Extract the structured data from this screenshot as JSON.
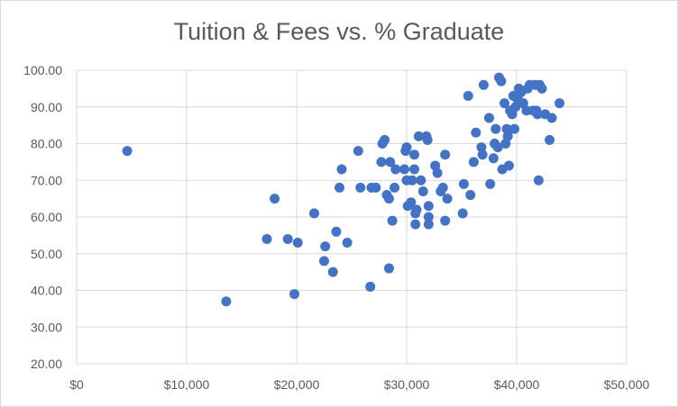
{
  "chart_data": {
    "type": "scatter",
    "title": "Tuition & Fees vs. % Graduate",
    "xlabel": "",
    "ylabel": "",
    "xlim": [
      0,
      50000
    ],
    "ylim": [
      20,
      100
    ],
    "x_ticks": [
      0,
      10000,
      20000,
      30000,
      40000,
      50000
    ],
    "x_tick_labels": [
      "$0",
      "$10,000",
      "$20,000",
      "$30,000",
      "$40,000",
      "$50,000"
    ],
    "y_ticks": [
      20,
      30,
      40,
      50,
      60,
      70,
      80,
      90,
      100
    ],
    "y_tick_labels": [
      "20.00",
      "30.00",
      "40.00",
      "50.00",
      "60.00",
      "70.00",
      "80.00",
      "90.00",
      "100.00"
    ],
    "grid": true,
    "legend": "none",
    "colors": {
      "marker": "#4472c4",
      "grid": "#d9d9d9",
      "text": "#595959"
    },
    "series": [
      {
        "points": [
          [
            4600,
            78
          ],
          [
            13600,
            37
          ],
          [
            17300,
            54
          ],
          [
            18000,
            65
          ],
          [
            19200,
            54
          ],
          [
            19800,
            39
          ],
          [
            20100,
            53
          ],
          [
            21600,
            61
          ],
          [
            22500,
            48
          ],
          [
            22600,
            52
          ],
          [
            23300,
            45
          ],
          [
            23600,
            56
          ],
          [
            23900,
            68
          ],
          [
            24100,
            73
          ],
          [
            24600,
            53
          ],
          [
            25600,
            78
          ],
          [
            25800,
            68
          ],
          [
            26700,
            41
          ],
          [
            26800,
            68
          ],
          [
            27200,
            68
          ],
          [
            27700,
            75
          ],
          [
            27800,
            80
          ],
          [
            28000,
            81
          ],
          [
            28200,
            66
          ],
          [
            28400,
            65
          ],
          [
            28500,
            75
          ],
          [
            28400,
            46
          ],
          [
            28700,
            59
          ],
          [
            28900,
            68
          ],
          [
            29000,
            73
          ],
          [
            29800,
            73
          ],
          [
            29900,
            78
          ],
          [
            30000,
            79
          ],
          [
            30000,
            70
          ],
          [
            30100,
            63
          ],
          [
            30400,
            64
          ],
          [
            30500,
            70
          ],
          [
            30700,
            77
          ],
          [
            30700,
            73
          ],
          [
            30800,
            61
          ],
          [
            30800,
            58
          ],
          [
            30900,
            62
          ],
          [
            31100,
            82
          ],
          [
            31300,
            70
          ],
          [
            31500,
            67
          ],
          [
            31800,
            82
          ],
          [
            31900,
            81
          ],
          [
            32000,
            60
          ],
          [
            32000,
            58
          ],
          [
            32000,
            63
          ],
          [
            32600,
            74
          ],
          [
            32800,
            72
          ],
          [
            33100,
            67
          ],
          [
            33300,
            68
          ],
          [
            33500,
            59
          ],
          [
            33500,
            77
          ],
          [
            33700,
            65
          ],
          [
            35100,
            61
          ],
          [
            35200,
            69
          ],
          [
            35600,
            93
          ],
          [
            35800,
            66
          ],
          [
            36100,
            75
          ],
          [
            36300,
            83
          ],
          [
            36800,
            79
          ],
          [
            36900,
            77
          ],
          [
            37000,
            96
          ],
          [
            37500,
            87
          ],
          [
            37600,
            69
          ],
          [
            37900,
            76
          ],
          [
            38000,
            80
          ],
          [
            38100,
            84
          ],
          [
            38300,
            79
          ],
          [
            38400,
            98
          ],
          [
            38600,
            97
          ],
          [
            38700,
            73
          ],
          [
            38900,
            91
          ],
          [
            39000,
            80
          ],
          [
            39100,
            84
          ],
          [
            39200,
            82
          ],
          [
            39300,
            74
          ],
          [
            39400,
            89
          ],
          [
            39600,
            88
          ],
          [
            39700,
            93
          ],
          [
            39800,
            84
          ],
          [
            39900,
            90
          ],
          [
            40100,
            92
          ],
          [
            40200,
            95
          ],
          [
            40400,
            94
          ],
          [
            40600,
            91
          ],
          [
            40900,
            89
          ],
          [
            41000,
            95
          ],
          [
            41200,
            96
          ],
          [
            41500,
            89
          ],
          [
            41700,
            96
          ],
          [
            41800,
            89
          ],
          [
            41900,
            88
          ],
          [
            42000,
            70
          ],
          [
            42100,
            96
          ],
          [
            42300,
            95
          ],
          [
            42600,
            88
          ],
          [
            43000,
            81
          ],
          [
            43200,
            87
          ],
          [
            43900,
            91
          ]
        ]
      }
    ]
  }
}
